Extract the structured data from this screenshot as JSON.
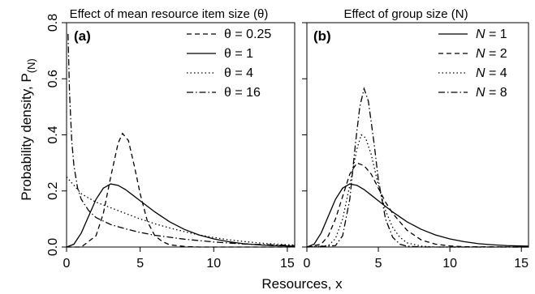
{
  "figure": {
    "xlabel": "Resources, x",
    "ylabel_main": "Probability density, P",
    "ylabel_sub": "(N)"
  },
  "chart_data": [
    {
      "type": "line",
      "panel_label": "(a)",
      "title": "Effect of mean resource item size (θ)",
      "xlim": [
        0,
        15.5
      ],
      "ylim": [
        0,
        0.8
      ],
      "xticks": [
        0,
        5,
        10,
        15
      ],
      "yticks": [
        0.0,
        0.2,
        0.4,
        0.6,
        0.8
      ],
      "ytick_labels": [
        "0.0",
        "0.2",
        "0.4",
        "0.6",
        "0.8"
      ],
      "grid": false,
      "legend_position": "top-right",
      "series": [
        {
          "name": "θ = 0.25",
          "dash": "dashed",
          "x": [
            0,
            1,
            2,
            2.5,
            3,
            3.5,
            3.8,
            4.2,
            4.6,
            5,
            5.5,
            6,
            6.5,
            7,
            8,
            9,
            15.5
          ],
          "y": [
            0,
            0.0,
            0.04,
            0.12,
            0.25,
            0.37,
            0.405,
            0.38,
            0.29,
            0.19,
            0.09,
            0.04,
            0.02,
            0.008,
            0.002,
            0,
            0
          ]
        },
        {
          "name": "θ = 1",
          "dash": "solid",
          "x": [
            0,
            0.5,
            1,
            1.5,
            2,
            2.5,
            3,
            3.5,
            4,
            4.5,
            5,
            6,
            7,
            8,
            9,
            10,
            11,
            12,
            13,
            14,
            15.5
          ],
          "y": [
            0,
            0.01,
            0.05,
            0.11,
            0.17,
            0.21,
            0.225,
            0.22,
            0.205,
            0.185,
            0.165,
            0.125,
            0.09,
            0.063,
            0.043,
            0.029,
            0.019,
            0.012,
            0.008,
            0.005,
            0.003
          ]
        },
        {
          "name": "θ = 4",
          "dash": "dotted",
          "x": [
            0,
            1,
            2,
            3,
            4,
            5,
            6,
            7,
            8,
            9,
            10,
            11,
            12,
            13,
            14,
            15.5
          ],
          "y": [
            0.25,
            0.19,
            0.16,
            0.14,
            0.12,
            0.1,
            0.083,
            0.068,
            0.055,
            0.043,
            0.034,
            0.026,
            0.02,
            0.015,
            0.011,
            0.007
          ]
        },
        {
          "name": "θ = 16",
          "dash": "dashdot",
          "x": [
            0.1,
            0.2,
            0.35,
            0.5,
            0.75,
            1,
            1.5,
            2,
            3,
            4,
            5,
            6,
            8,
            10,
            12,
            15.5
          ],
          "y": [
            0.76,
            0.55,
            0.38,
            0.29,
            0.21,
            0.17,
            0.13,
            0.105,
            0.08,
            0.065,
            0.052,
            0.042,
            0.028,
            0.018,
            0.011,
            0.005
          ]
        }
      ]
    },
    {
      "type": "line",
      "panel_label": "(b)",
      "title": "Effect of group size (N)",
      "xlim": [
        0,
        15.5
      ],
      "ylim": [
        0,
        0.8
      ],
      "xticks": [
        0,
        5,
        10,
        15
      ],
      "yticks": [
        0.0,
        0.2,
        0.4,
        0.6,
        0.8
      ],
      "grid": false,
      "legend_position": "top-right",
      "series": [
        {
          "name": "N = 1",
          "dash": "solid",
          "x": [
            0,
            0.5,
            1,
            1.5,
            2,
            2.5,
            3,
            3.5,
            4,
            4.5,
            5,
            6,
            7,
            8,
            9,
            10,
            11,
            12,
            13,
            14,
            15.5
          ],
          "y": [
            0,
            0.01,
            0.05,
            0.11,
            0.17,
            0.21,
            0.225,
            0.22,
            0.205,
            0.185,
            0.165,
            0.125,
            0.09,
            0.063,
            0.043,
            0.029,
            0.019,
            0.012,
            0.008,
            0.005,
            0.003
          ]
        },
        {
          "name": "N = 2",
          "dash": "dashed",
          "x": [
            0,
            1,
            1.5,
            2,
            2.5,
            3,
            3.5,
            4,
            4.5,
            5,
            5.5,
            6,
            7,
            8,
            9,
            10,
            11,
            15.5
          ],
          "y": [
            0,
            0.01,
            0.04,
            0.1,
            0.18,
            0.26,
            0.3,
            0.29,
            0.26,
            0.21,
            0.16,
            0.12,
            0.06,
            0.025,
            0.01,
            0.004,
            0.001,
            0
          ]
        },
        {
          "name": "N = 4",
          "dash": "dotted",
          "x": [
            0,
            1.5,
            2,
            2.5,
            3,
            3.5,
            3.8,
            4.1,
            4.5,
            5,
            5.5,
            6,
            6.5,
            7,
            8,
            9,
            15.5
          ],
          "y": [
            0,
            0.005,
            0.03,
            0.1,
            0.22,
            0.35,
            0.4,
            0.39,
            0.33,
            0.22,
            0.13,
            0.07,
            0.035,
            0.015,
            0.003,
            0,
            0
          ]
        },
        {
          "name": "N = 8",
          "dash": "dashdot",
          "x": [
            0,
            2,
            2.5,
            3,
            3.4,
            3.7,
            4,
            4.3,
            4.7,
            5,
            5.5,
            6,
            6.5,
            7,
            8,
            15.5
          ],
          "y": [
            0,
            0.005,
            0.04,
            0.17,
            0.37,
            0.5,
            0.565,
            0.52,
            0.37,
            0.24,
            0.1,
            0.035,
            0.01,
            0.003,
            0,
            0
          ]
        }
      ]
    }
  ]
}
